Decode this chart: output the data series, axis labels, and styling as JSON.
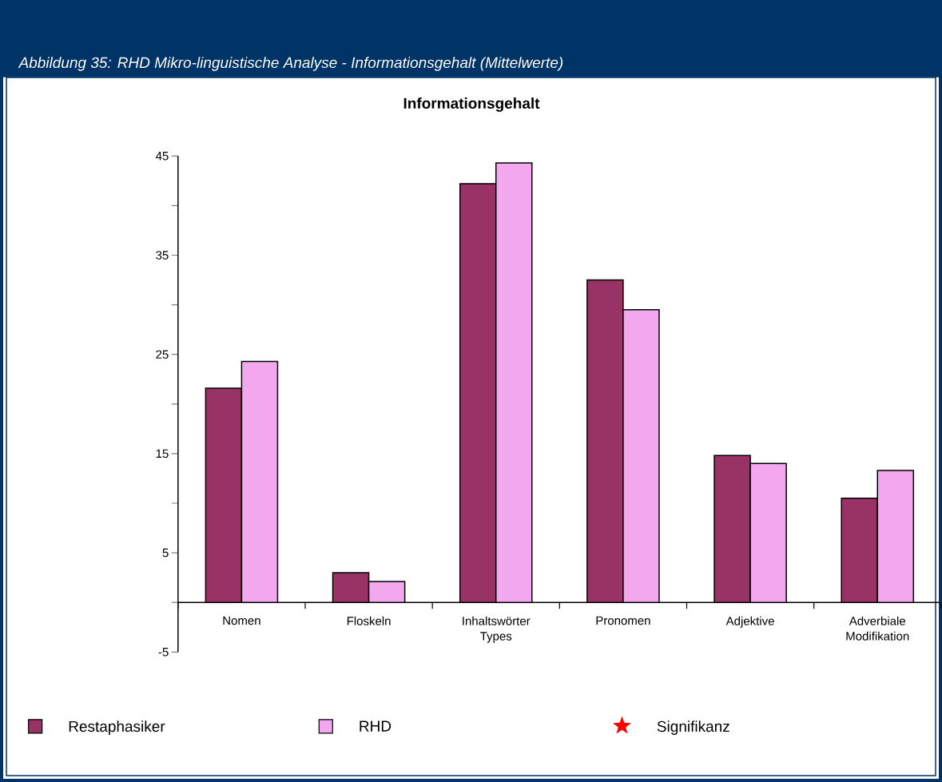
{
  "chart_data": {
    "type": "bar",
    "title": "Abbildung 35: RHD Mikro-linguistische Analyse - Informationsgehalt (Mittelwerte)",
    "subtitle": "Informationsgehalt",
    "categories": [
      "Nomen",
      "Floskeln",
      "Inhaltswörter Types",
      "Pronomen",
      "Adjektive",
      "Adverbiale Modifikation"
    ],
    "series": [
      {
        "name": "Restaphasiker",
        "color": "#993366",
        "values": [
          21.6,
          3.0,
          42.2,
          32.5,
          14.8,
          10.5
        ]
      },
      {
        "name": "RHD",
        "color": "#f3a7ee",
        "values": [
          24.3,
          2.1,
          44.3,
          29.5,
          14.0,
          13.3
        ]
      },
      {
        "name": "Signifikanz",
        "type": "scatter",
        "marker": "star",
        "color": "#ff0000",
        "values": [
          null,
          null,
          null,
          null,
          null,
          null
        ]
      }
    ],
    "ylim": [
      -5,
      45
    ],
    "yticks": [
      -5,
      5,
      15,
      25,
      35,
      45
    ],
    "legend": "bottom"
  }
}
